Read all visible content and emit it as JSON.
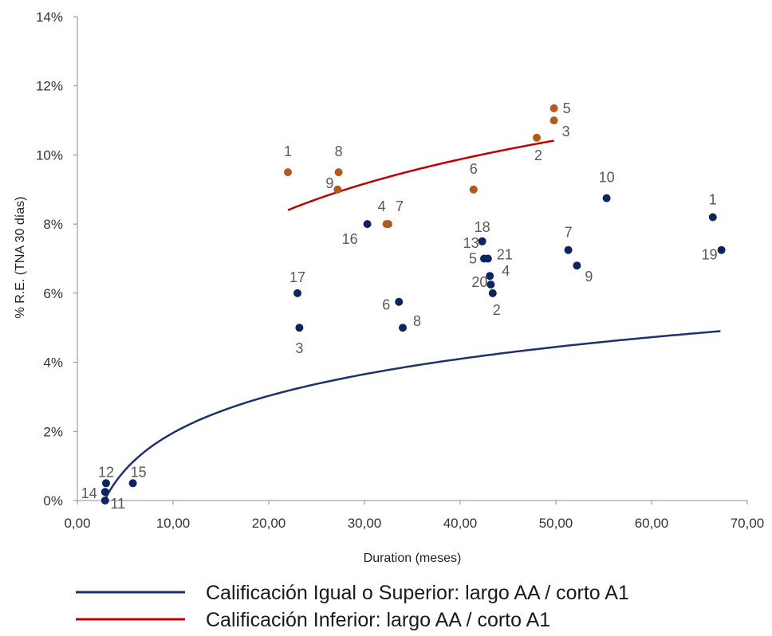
{
  "chart_data": {
    "type": "scatter",
    "title": "",
    "xlabel": "Duration (meses)",
    "ylabel": "% R.E. (TNA 30 días)",
    "xlim": [
      0,
      70
    ],
    "ylim": [
      0,
      14
    ],
    "x_ticks": [
      "0,00",
      "10,00",
      "20,00",
      "30,00",
      "40,00",
      "50,00",
      "60,00",
      "70,00"
    ],
    "y_ticks": [
      "0%",
      "2%",
      "4%",
      "6%",
      "8%",
      "10%",
      "12%",
      "14%"
    ],
    "grid": false,
    "legend_position": "bottom",
    "series": [
      {
        "name": "Calificación Igual o Superior: largo AA / corto A1",
        "point_color": "#0d2461",
        "line_color": "#1f3070",
        "trend": {
          "type": "log",
          "x_range": [
            2.9,
            67.2
          ],
          "a": 1.545,
          "b": -1.6
        },
        "points": [
          {
            "label": "1",
            "x": 66.4,
            "y": 8.2
          },
          {
            "label": "2",
            "x": 43.4,
            "y": 6.0
          },
          {
            "label": "3",
            "x": 23.2,
            "y": 5.0
          },
          {
            "label": "4",
            "x": 43.1,
            "y": 6.5
          },
          {
            "label": "5",
            "x": 42.5,
            "y": 7.0
          },
          {
            "label": "6",
            "x": 33.6,
            "y": 5.75
          },
          {
            "label": "7",
            "x": 51.3,
            "y": 7.25
          },
          {
            "label": "8",
            "x": 34.0,
            "y": 5.0
          },
          {
            "label": "9",
            "x": 52.2,
            "y": 6.8
          },
          {
            "label": "10",
            "x": 55.3,
            "y": 8.75
          },
          {
            "label": "11",
            "x": 2.9,
            "y": 0.0
          },
          {
            "label": "12",
            "x": 3.0,
            "y": 0.5
          },
          {
            "label": "13",
            "x": 42.3,
            "y": 7.5
          },
          {
            "label": "14",
            "x": 2.9,
            "y": 0.25
          },
          {
            "label": "15",
            "x": 5.8,
            "y": 0.5
          },
          {
            "label": "16",
            "x": 30.3,
            "y": 8.0
          },
          {
            "label": "17",
            "x": 23.0,
            "y": 6.0
          },
          {
            "label": "18",
            "x": 42.3,
            "y": 7.5
          },
          {
            "label": "19",
            "x": 67.3,
            "y": 7.25
          },
          {
            "label": "20",
            "x": 43.2,
            "y": 6.25
          },
          {
            "label": "21",
            "x": 42.9,
            "y": 7.0
          }
        ]
      },
      {
        "name": "Calificación Inferior: largo AA / corto A1",
        "point_color": "#b05a1e",
        "line_color": "#c00000",
        "trend": {
          "type": "log",
          "x_range": [
            22.0,
            49.8
          ],
          "a": 2.46,
          "b": 0.8
        },
        "points": [
          {
            "label": "1",
            "x": 22.0,
            "y": 9.5
          },
          {
            "label": "2",
            "x": 48.0,
            "y": 10.5
          },
          {
            "label": "3",
            "x": 49.8,
            "y": 11.0
          },
          {
            "label": "4",
            "x": 32.3,
            "y": 8.0
          },
          {
            "label": "5",
            "x": 49.8,
            "y": 11.35
          },
          {
            "label": "6",
            "x": 41.4,
            "y": 9.0
          },
          {
            "label": "7",
            "x": 32.5,
            "y": 8.0
          },
          {
            "label": "8",
            "x": 27.3,
            "y": 9.5
          },
          {
            "label": "9",
            "x": 27.2,
            "y": 9.0
          }
        ]
      }
    ]
  }
}
